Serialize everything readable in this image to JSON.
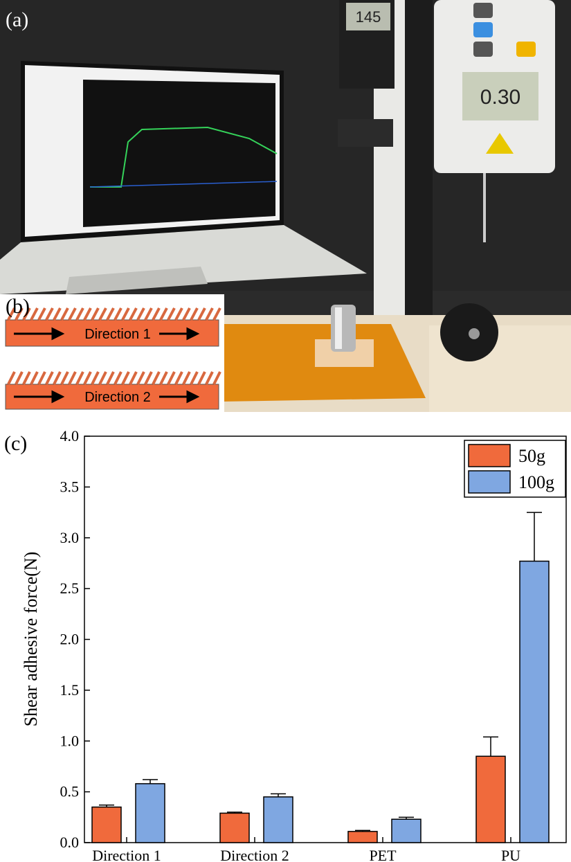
{
  "panels": {
    "a": "(a)",
    "b": "(b)",
    "c": "(c)"
  },
  "photo": {
    "readouts": [
      "145",
      "0.30"
    ]
  },
  "schematic": {
    "labels": [
      "Direction 1",
      "Direction 2"
    ]
  },
  "chart_data": {
    "type": "bar",
    "ylabel": "Shear adhesive force(N)",
    "categories": [
      "Direction 1",
      "Direction 2",
      "PET",
      "PU"
    ],
    "series": [
      {
        "name": "50g",
        "color": "#f06a3c",
        "values": [
          0.35,
          0.29,
          0.11,
          0.85
        ],
        "errors": [
          0.02,
          0.01,
          0.01,
          0.19
        ]
      },
      {
        "name": "100g",
        "color": "#7fa7e1",
        "values": [
          0.58,
          0.45,
          0.23,
          2.77
        ],
        "errors": [
          0.04,
          0.03,
          0.02,
          0.48
        ]
      }
    ],
    "ylim": [
      0,
      4
    ],
    "yticks": [
      {
        "value": 0,
        "label": "0.0"
      },
      0.5,
      {
        "value": 1,
        "label": "1.0"
      },
      1.5,
      {
        "value": 2,
        "label": "2.0"
      },
      2.5,
      {
        "value": 3,
        "label": "3.0"
      },
      3.5,
      {
        "value": 4,
        "label": "4.0"
      }
    ],
    "legend": "upper right"
  }
}
